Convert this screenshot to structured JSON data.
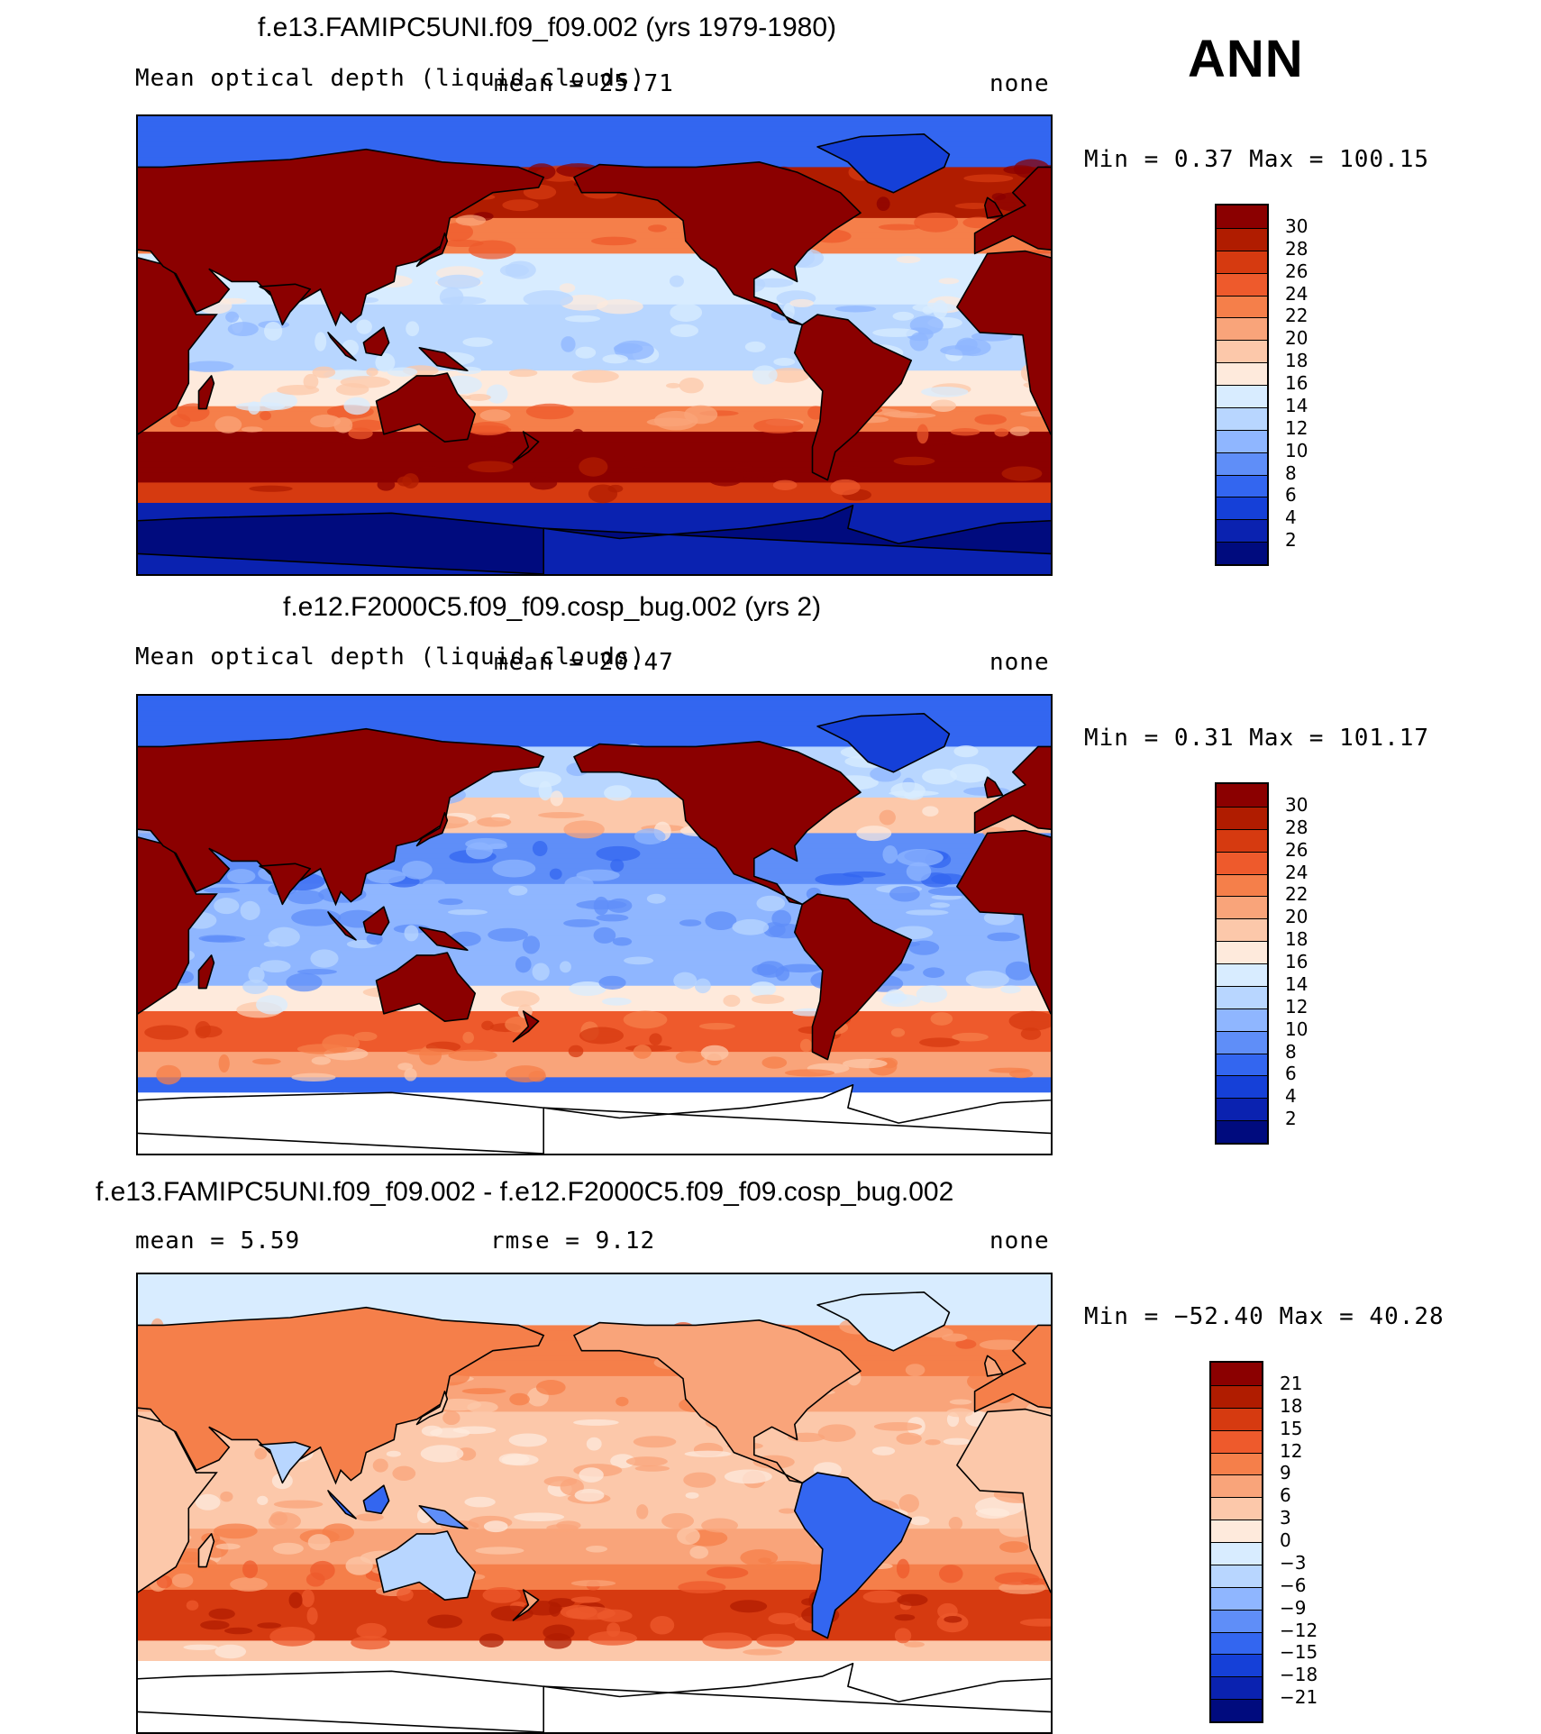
{
  "season": "ANN",
  "panels": [
    {
      "title": "f.e13.FAMIPC5UNI.f09_f09.002 (yrs 1979-1980)",
      "variable": "Mean optical depth (liquid clouds)",
      "mean_text": "mean =  25.71",
      "units": "none",
      "minmax_text": "Min =    0.37 Max =  100.15",
      "map_kind": "model_a",
      "colorbar": {
        "labels": [
          "30",
          "28",
          "26",
          "24",
          "22",
          "20",
          "18",
          "16",
          "14",
          "12",
          "10",
          "8",
          "6",
          "4",
          "2"
        ],
        "colors": [
          "#8b0000",
          "#b01c00",
          "#d63a10",
          "#ee5a2c",
          "#f57f4a",
          "#f9a47a",
          "#fcc8aa",
          "#feeadc",
          "#d8ecff",
          "#b8d6ff",
          "#8fb6ff",
          "#5f8ef8",
          "#3366f0",
          "#1540d8",
          "#0a22b0",
          "#000b7e"
        ]
      }
    },
    {
      "title": "f.e12.F2000C5.f09_f09.cosp_bug.002 (yrs 2)",
      "variable": "Mean optical depth (liquid clouds)",
      "mean_text": "mean =  20.47",
      "units": "none",
      "minmax_text": "Min =    0.31 Max =  101.17",
      "map_kind": "model_b",
      "colorbar": {
        "labels": [
          "30",
          "28",
          "26",
          "24",
          "22",
          "20",
          "18",
          "16",
          "14",
          "12",
          "10",
          "8",
          "6",
          "4",
          "2"
        ],
        "colors": [
          "#8b0000",
          "#b01c00",
          "#d63a10",
          "#ee5a2c",
          "#f57f4a",
          "#f9a47a",
          "#fcc8aa",
          "#feeadc",
          "#d8ecff",
          "#b8d6ff",
          "#8fb6ff",
          "#5f8ef8",
          "#3366f0",
          "#1540d8",
          "#0a22b0",
          "#000b7e"
        ]
      }
    },
    {
      "title": "f.e13.FAMIPC5UNI.f09_f09.002 - f.e12.F2000C5.f09_f09.cosp_bug.002",
      "mean_text": "mean =     5.59",
      "rmse_text": "rmse =    9.12",
      "units": "none",
      "minmax_text": "Min = −52.40 Max =   40.28",
      "map_kind": "diff",
      "colorbar": {
        "labels": [
          "21",
          "18",
          "15",
          "12",
          "9",
          "6",
          "3",
          "0",
          "−3",
          "−6",
          "−9",
          "−12",
          "−15",
          "−18",
          "−21"
        ],
        "colors": [
          "#8b0000",
          "#b01c00",
          "#d63a10",
          "#ee5a2c",
          "#f57f4a",
          "#f9a47a",
          "#fcc8aa",
          "#feeadc",
          "#d8ecff",
          "#b8d6ff",
          "#8fb6ff",
          "#5f8ef8",
          "#3366f0",
          "#1540d8",
          "#0a22b0",
          "#000b7e"
        ]
      }
    }
  ]
}
